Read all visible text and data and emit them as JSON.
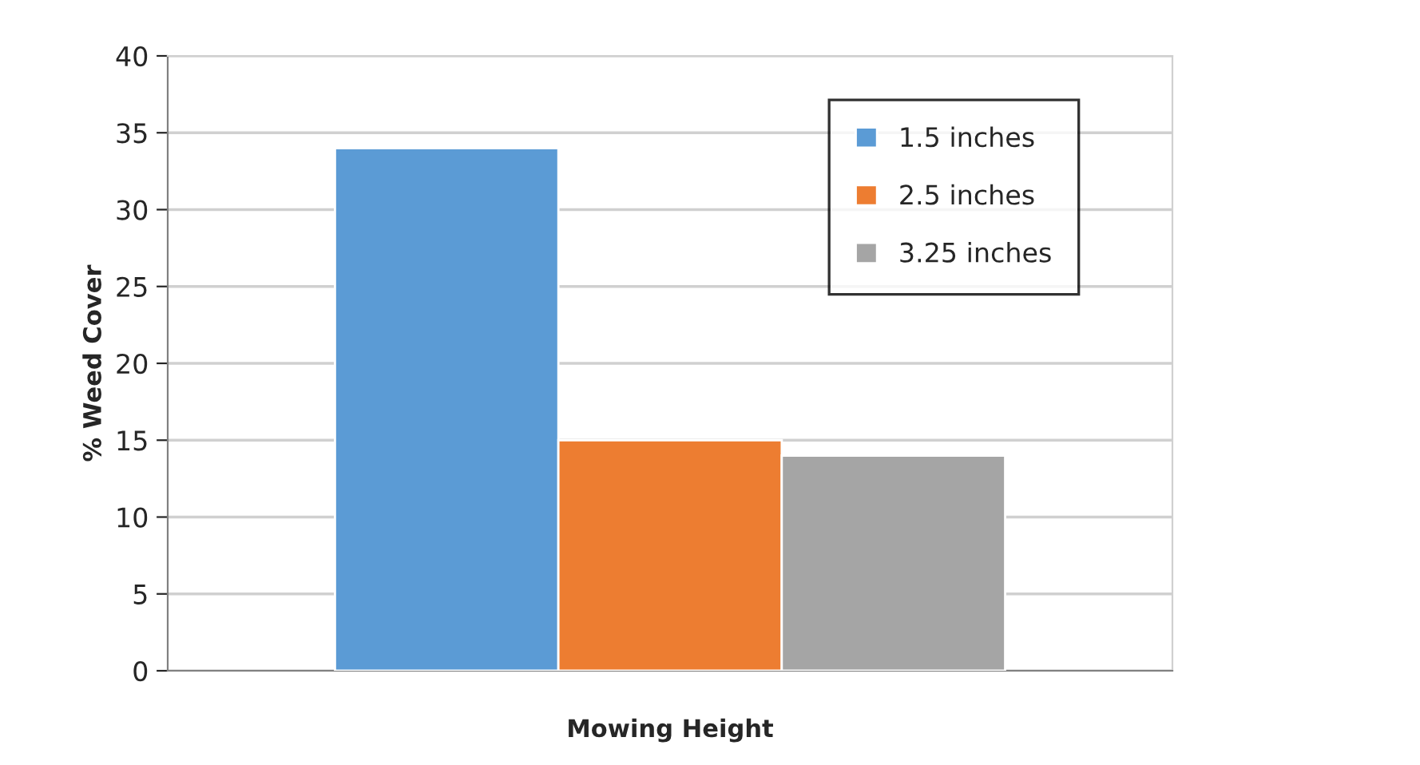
{
  "chart_data": {
    "type": "bar",
    "xlabel": "Mowing Height",
    "ylabel": "% Weed Cover",
    "categories": [
      null
    ],
    "series": [
      {
        "name": "1.5 inches",
        "color": "#5b9bd5",
        "values": [
          34
        ]
      },
      {
        "name": "2.5 inches",
        "color": "#ed7d31",
        "values": [
          15
        ]
      },
      {
        "name": "3.25 inches",
        "color": "#a5a5a5",
        "values": [
          14
        ]
      }
    ],
    "ylim": [
      0,
      40
    ],
    "yticks": [
      0,
      5,
      10,
      15,
      20,
      25,
      30,
      35,
      40
    ],
    "grid": "y",
    "legend": "top right"
  }
}
